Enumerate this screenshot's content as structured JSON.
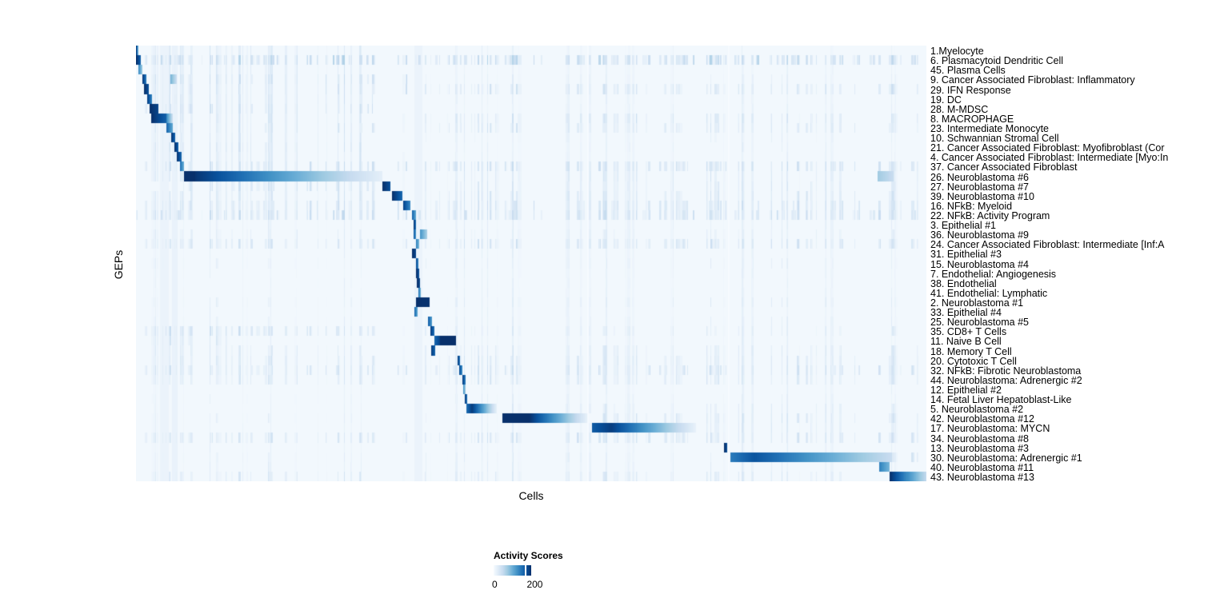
{
  "figure": {
    "ylabel": "GEPs",
    "xlabel": "Cells"
  },
  "legend": {
    "title": "Activity Scores",
    "min_label": "0",
    "max_label": "200"
  },
  "chart_data": {
    "type": "heatmap",
    "title": "",
    "xlabel": "Cells",
    "ylabel": "GEPs",
    "legend_title": "Activity Scores",
    "colorbar_ticks": [
      0,
      200
    ],
    "score_max": 233,
    "colormap_stops": [
      "#f7fbff",
      "#deebf7",
      "#c6dbef",
      "#9ecae1",
      "#6baed6",
      "#4292c6",
      "#2171b5",
      "#08519c",
      "#08306b"
    ],
    "background_score": 6,
    "column_gaps": [
      [
        0.5712,
        0.002,
        0.75
      ],
      [
        0.7487,
        0.0025,
        0.85
      ]
    ],
    "column_tints": [
      [
        0.03,
        0.012,
        8
      ],
      [
        0.046,
        0.007,
        10
      ],
      [
        0.352,
        0.01,
        8
      ]
    ],
    "rows": [
      {
        "label": "1.Myelocyte",
        "seg": [
          [
            0.0,
            0.0035,
            220,
            120
          ]
        ],
        "stripes": [
          [
            0.0,
            0.31,
            0.22,
            45
          ],
          [
            0.31,
            1,
            0.06,
            22
          ]
        ]
      },
      {
        "label": "6. Plasmacytoid Dendritic Cell",
        "seg": [
          [
            0.0005,
            0.006,
            233,
            190
          ]
        ],
        "stripes": [
          [
            0.0,
            1,
            0.45,
            80
          ]
        ]
      },
      {
        "label": "45. Plasma Cells",
        "seg": [
          [
            0.0035,
            0.008,
            150,
            90
          ]
        ],
        "stripes": [
          [
            0.0,
            0.32,
            0.25,
            48
          ],
          [
            0.32,
            1,
            0.1,
            26
          ]
        ]
      },
      {
        "label": "9. Cancer Associated Fibroblast: Inflammatory",
        "seg": [
          [
            0.008,
            0.0135,
            225,
            170
          ],
          [
            0.044,
            0.052,
            110,
            55
          ]
        ],
        "stripes": [
          [
            0.0,
            0.35,
            0.3,
            62
          ],
          [
            0.35,
            1,
            0.13,
            30
          ]
        ]
      },
      {
        "label": "29. IFN Response",
        "seg": [
          [
            0.01,
            0.016,
            233,
            205
          ]
        ],
        "stripes": [
          [
            0.0,
            1,
            0.28,
            55
          ]
        ]
      },
      {
        "label": "19. DC",
        "seg": [
          [
            0.014,
            0.0205,
            220,
            160
          ]
        ],
        "stripes": [
          [
            0.0,
            0.3,
            0.28,
            55
          ],
          [
            0.3,
            1,
            0.1,
            26
          ]
        ]
      },
      {
        "label": "28. M-MDSC",
        "seg": [
          [
            0.017,
            0.028,
            233,
            215
          ]
        ],
        "stripes": [
          [
            0.0,
            0.3,
            0.32,
            62
          ],
          [
            0.3,
            1,
            0.11,
            26
          ]
        ]
      },
      {
        "label": "8. MACROPHAGE",
        "seg": [
          [
            0.019,
            0.0385,
            233,
            190
          ],
          [
            0.0385,
            0.047,
            150,
            55
          ]
        ],
        "stripes": [
          [
            0.0,
            1,
            0.22,
            55
          ]
        ]
      },
      {
        "label": "23. Intermediate Monocyte",
        "seg": [
          [
            0.0385,
            0.047,
            185,
            125
          ]
        ],
        "stripes": [
          [
            0.0,
            1,
            0.27,
            50
          ]
        ]
      },
      {
        "label": "10. Schwannian Stromal Cell",
        "seg": [
          [
            0.0445,
            0.0495,
            225,
            190
          ]
        ],
        "stripes": [
          [
            0.0,
            0.32,
            0.22,
            48
          ],
          [
            0.32,
            1,
            0.14,
            30
          ]
        ]
      },
      {
        "label": "21. Cancer Associated Fibroblast: Myofibroblast (Cor",
        "seg": [
          [
            0.0485,
            0.0535,
            230,
            195
          ]
        ],
        "stripes": [
          [
            0.0,
            0.33,
            0.26,
            55
          ],
          [
            0.33,
            1,
            0.12,
            28
          ]
        ]
      },
      {
        "label": "4. Cancer Associated Fibroblast: Intermediate [Myo:In",
        "seg": [
          [
            0.052,
            0.0575,
            228,
            185
          ]
        ],
        "stripes": [
          [
            0.0,
            0.34,
            0.26,
            50
          ],
          [
            0.34,
            1,
            0.1,
            26
          ]
        ]
      },
      {
        "label": "37. Cancer Associated Fibroblast",
        "seg": [
          [
            0.0555,
            0.0605,
            175,
            120
          ]
        ],
        "stripes": [
          [
            0.0,
            1,
            0.35,
            62
          ]
        ]
      },
      {
        "label": "26. Neuroblastoma #6",
        "seg": [
          [
            0.0605,
            0.075,
            233,
            233
          ],
          [
            0.075,
            0.312,
            228,
            22
          ],
          [
            0.938,
            0.958,
            85,
            55
          ]
        ],
        "stripes": [
          [
            0.0,
            0.06,
            0.27,
            55
          ],
          [
            0.312,
            1,
            0.2,
            48
          ]
        ]
      },
      {
        "label": "27. Neuroblastoma #7",
        "seg": [
          [
            0.3115,
            0.322,
            233,
            205
          ]
        ],
        "stripes": [
          [
            0.06,
            0.311,
            0.4,
            55
          ],
          [
            0.325,
            1,
            0.22,
            45
          ]
        ]
      },
      {
        "label": "39. Neuroblastoma #10",
        "seg": [
          [
            0.3235,
            0.337,
            233,
            185
          ]
        ],
        "stripes": [
          [
            0.0,
            1,
            0.27,
            50
          ]
        ]
      },
      {
        "label": "16. NFkB: Myeloid",
        "seg": [
          [
            0.338,
            0.3475,
            215,
            155
          ]
        ],
        "stripes": [
          [
            0.0,
            1,
            0.4,
            60
          ]
        ]
      },
      {
        "label": "22. NFkB: Activity Program",
        "seg": [
          [
            0.3495,
            0.354,
            185,
            130
          ]
        ],
        "stripes": [
          [
            0.0,
            1,
            0.45,
            65
          ]
        ]
      },
      {
        "label": "3. Epithelial #1",
        "seg": [
          [
            0.3512,
            0.3545,
            225,
            185
          ]
        ],
        "stripes": [
          [
            0.0,
            1,
            0.13,
            30
          ]
        ]
      },
      {
        "label": "36. Neuroblastoma #9",
        "seg": [
          [
            0.3512,
            0.3545,
            190,
            150
          ],
          [
            0.359,
            0.368,
            140,
            80
          ]
        ],
        "stripes": [
          [
            0.0,
            1,
            0.18,
            38
          ]
        ]
      },
      {
        "label": "24. Cancer Associated Fibroblast: Intermediate [Inf:A",
        "seg": [
          [
            0.3545,
            0.3578,
            160,
            110
          ]
        ],
        "stripes": [
          [
            0.0,
            1,
            0.32,
            55
          ]
        ]
      },
      {
        "label": "31. Epithelial #3",
        "seg": [
          [
            0.349,
            0.3545,
            233,
            215
          ]
        ],
        "stripes": [
          [
            0.0,
            1,
            0.11,
            26
          ]
        ]
      },
      {
        "label": "15. Neuroblastoma #4",
        "seg": [
          [
            0.354,
            0.3568,
            205,
            165
          ]
        ],
        "stripes": [
          [
            0.0,
            1,
            0.13,
            30
          ]
        ]
      },
      {
        "label": "7. Endothelial: Angiogenesis",
        "seg": [
          [
            0.3545,
            0.358,
            233,
            205
          ]
        ],
        "stripes": [
          [
            0.0,
            1,
            0.11,
            26
          ]
        ]
      },
      {
        "label": "38. Endothelial",
        "seg": [
          [
            0.3555,
            0.359,
            233,
            215
          ]
        ],
        "stripes": [
          [
            0.0,
            1,
            0.1,
            24
          ]
        ]
      },
      {
        "label": "41. Endothelial: Lymphatic",
        "seg": [
          [
            0.357,
            0.3605,
            170,
            120
          ]
        ],
        "stripes": [
          [
            0.0,
            1,
            0.1,
            24
          ]
        ]
      },
      {
        "label": "2. Neuroblastoma #1",
        "seg": [
          [
            0.3545,
            0.3715,
            233,
            230
          ]
        ],
        "stripes": [
          [
            0.0,
            1,
            0.13,
            34
          ]
        ]
      },
      {
        "label": "33. Epithelial #4",
        "seg": [
          [
            0.352,
            0.3558,
            180,
            130
          ]
        ],
        "stripes": [
          [
            0.0,
            1,
            0.11,
            26
          ]
        ]
      },
      {
        "label": "25. Neuroblastoma #5",
        "seg": [
          [
            0.369,
            0.374,
            190,
            140
          ]
        ],
        "stripes": [
          [
            0.0,
            1,
            0.13,
            30
          ]
        ]
      },
      {
        "label": "35. CD8+ T Cells",
        "seg": [
          [
            0.3725,
            0.378,
            220,
            180
          ]
        ],
        "stripes": [
          [
            0.0,
            0.33,
            0.36,
            62
          ],
          [
            0.33,
            1,
            0.18,
            40
          ]
        ]
      },
      {
        "label": "11. Naive B Cell",
        "seg": [
          [
            0.3775,
            0.3845,
            185,
            215
          ],
          [
            0.3845,
            0.405,
            233,
            233
          ]
        ],
        "stripes": [
          [
            0.0,
            0.12,
            0.3,
            55
          ],
          [
            0.12,
            1,
            0.11,
            28
          ]
        ]
      },
      {
        "label": "18. Memory T Cell",
        "seg": [
          [
            0.3735,
            0.3785,
            220,
            190
          ]
        ],
        "stripes": [
          [
            0.0,
            1,
            0.22,
            42
          ]
        ]
      },
      {
        "label": "20. Cytotoxic T Cell",
        "seg": [
          [
            0.4065,
            0.4095,
            220,
            180
          ]
        ],
        "stripes": [
          [
            0.0,
            1,
            0.27,
            48
          ]
        ]
      },
      {
        "label": "32. NFkB: Fibrotic Neuroblastoma",
        "seg": [
          [
            0.409,
            0.413,
            205,
            155
          ]
        ],
        "stripes": [
          [
            0.0,
            1,
            0.36,
            55
          ]
        ]
      },
      {
        "label": "44. Neuroblastoma: Adrenergic #2",
        "seg": [
          [
            0.4125,
            0.4165,
            220,
            170
          ]
        ],
        "stripes": [
          [
            0.0,
            1,
            0.27,
            45
          ]
        ]
      },
      {
        "label": "12. Epithelial #2",
        "seg": [
          [
            0.414,
            0.4168,
            140,
            90
          ]
        ],
        "stripes": [
          [
            0.0,
            1,
            0.1,
            24
          ]
        ]
      },
      {
        "label": "14. Fetal Liver Hepatoblast-Like",
        "seg": [
          [
            0.4155,
            0.4188,
            220,
            180
          ]
        ],
        "stripes": [
          [
            0.0,
            1,
            0.12,
            28
          ]
        ]
      },
      {
        "label": "5. Neuroblastoma #2",
        "seg": [
          [
            0.418,
            0.4255,
            180,
            220
          ],
          [
            0.4255,
            0.456,
            220,
            22
          ]
        ],
        "stripes": [
          [
            0.0,
            0.41,
            0.1,
            24
          ],
          [
            0.46,
            1,
            0.18,
            38
          ]
        ]
      },
      {
        "label": "42. Neuroblastoma #12",
        "seg": [
          [
            0.4636,
            0.498,
            233,
            233
          ],
          [
            0.498,
            0.5717,
            230,
            18
          ]
        ],
        "stripes": [
          [
            0.0,
            0.46,
            0.13,
            30
          ],
          [
            0.578,
            1,
            0.27,
            50
          ]
        ]
      },
      {
        "label": "17. Neuroblastoma: MYCN",
        "seg": [
          [
            0.577,
            0.601,
            195,
            220
          ],
          [
            0.601,
            0.7085,
            220,
            18
          ]
        ],
        "stripes": [
          [
            0.0,
            0.577,
            0.11,
            26
          ],
          [
            0.712,
            1,
            0.22,
            42
          ]
        ]
      },
      {
        "label": "34. Neuroblastoma #8",
        "seg": [],
        "stripes": [
          [
            0.0,
            1,
            0.32,
            52
          ]
        ]
      },
      {
        "label": "13. Neuroblastoma #3",
        "seg": [
          [
            0.7435,
            0.748,
            233,
            210
          ]
        ],
        "stripes": [
          [
            0.0,
            1,
            0.11,
            26
          ]
        ]
      },
      {
        "label": "30. Neuroblastoma: Adrenergic #1",
        "seg": [
          [
            0.752,
            0.782,
            165,
            200
          ],
          [
            0.782,
            0.956,
            200,
            55
          ]
        ],
        "stripes": [
          [
            0.0,
            0.75,
            0.13,
            32
          ],
          [
            0.93,
            1,
            0.32,
            55
          ]
        ]
      },
      {
        "label": "40. Neuroblastoma #11",
        "seg": [
          [
            0.9405,
            0.9535,
            160,
            110
          ]
        ],
        "stripes": [
          [
            0.0,
            1,
            0.13,
            32
          ]
        ]
      },
      {
        "label": "43. Neuroblastoma #13",
        "seg": [
          [
            0.9535,
            0.976,
            233,
            150
          ],
          [
            0.976,
            1.0,
            150,
            60
          ]
        ],
        "stripes": [
          [
            0.0,
            1,
            0.22,
            45
          ]
        ]
      }
    ]
  }
}
